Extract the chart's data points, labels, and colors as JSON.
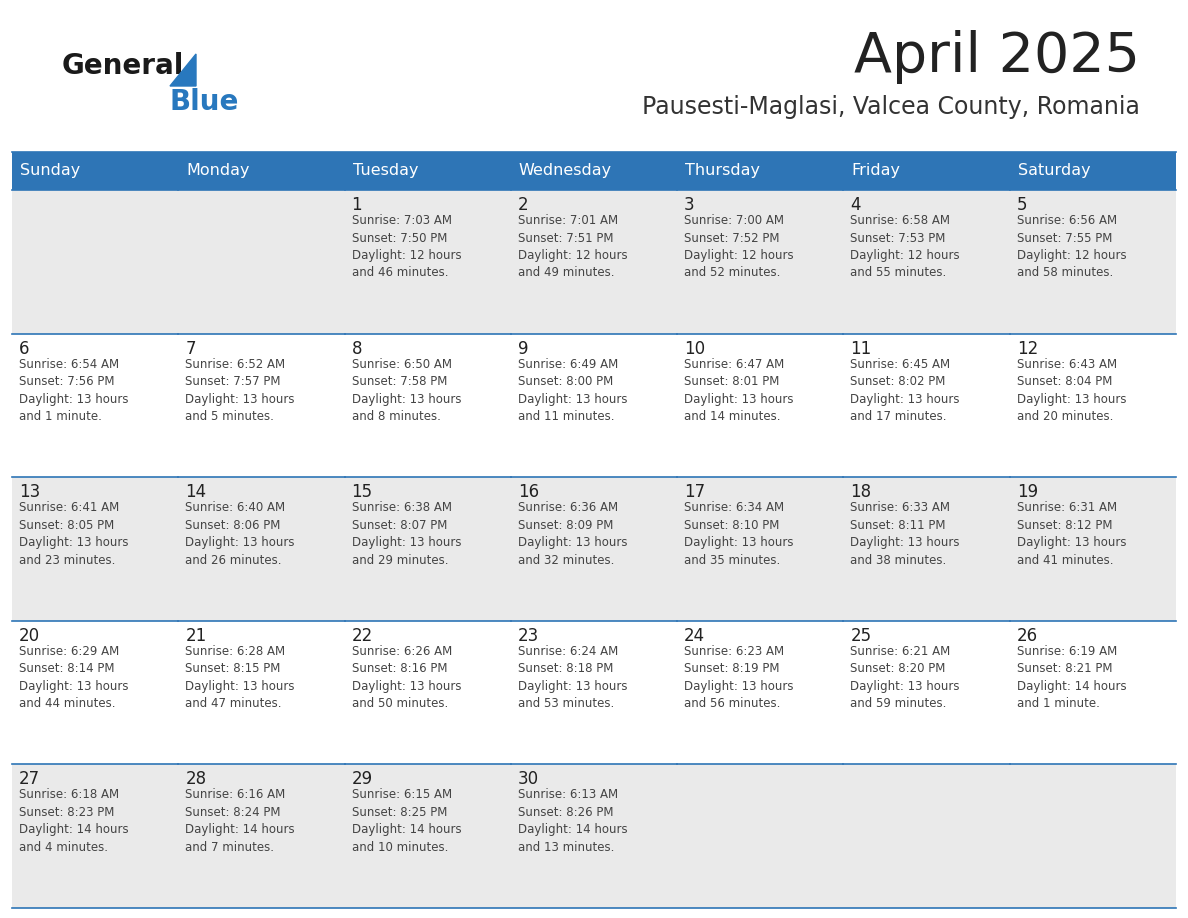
{
  "title": "April 2025",
  "subtitle": "Pausesti-Maglasi, Valcea County, Romania",
  "days_of_week": [
    "Sunday",
    "Monday",
    "Tuesday",
    "Wednesday",
    "Thursday",
    "Friday",
    "Saturday"
  ],
  "header_bg": "#2E75B6",
  "header_text_color": "#FFFFFF",
  "cell_bg_even": "#EAEAEA",
  "cell_bg_odd": "#FFFFFF",
  "line_color": "#2E75B6",
  "day_number_color": "#222222",
  "cell_text_color": "#444444",
  "title_color": "#222222",
  "subtitle_color": "#333333",
  "logo_general_color": "#1a1a1a",
  "logo_blue_color": "#2878BE",
  "calendar_data": [
    [
      {
        "day": null,
        "text": ""
      },
      {
        "day": null,
        "text": ""
      },
      {
        "day": 1,
        "text": "Sunrise: 7:03 AM\nSunset: 7:50 PM\nDaylight: 12 hours\nand 46 minutes."
      },
      {
        "day": 2,
        "text": "Sunrise: 7:01 AM\nSunset: 7:51 PM\nDaylight: 12 hours\nand 49 minutes."
      },
      {
        "day": 3,
        "text": "Sunrise: 7:00 AM\nSunset: 7:52 PM\nDaylight: 12 hours\nand 52 minutes."
      },
      {
        "day": 4,
        "text": "Sunrise: 6:58 AM\nSunset: 7:53 PM\nDaylight: 12 hours\nand 55 minutes."
      },
      {
        "day": 5,
        "text": "Sunrise: 6:56 AM\nSunset: 7:55 PM\nDaylight: 12 hours\nand 58 minutes."
      }
    ],
    [
      {
        "day": 6,
        "text": "Sunrise: 6:54 AM\nSunset: 7:56 PM\nDaylight: 13 hours\nand 1 minute."
      },
      {
        "day": 7,
        "text": "Sunrise: 6:52 AM\nSunset: 7:57 PM\nDaylight: 13 hours\nand 5 minutes."
      },
      {
        "day": 8,
        "text": "Sunrise: 6:50 AM\nSunset: 7:58 PM\nDaylight: 13 hours\nand 8 minutes."
      },
      {
        "day": 9,
        "text": "Sunrise: 6:49 AM\nSunset: 8:00 PM\nDaylight: 13 hours\nand 11 minutes."
      },
      {
        "day": 10,
        "text": "Sunrise: 6:47 AM\nSunset: 8:01 PM\nDaylight: 13 hours\nand 14 minutes."
      },
      {
        "day": 11,
        "text": "Sunrise: 6:45 AM\nSunset: 8:02 PM\nDaylight: 13 hours\nand 17 minutes."
      },
      {
        "day": 12,
        "text": "Sunrise: 6:43 AM\nSunset: 8:04 PM\nDaylight: 13 hours\nand 20 minutes."
      }
    ],
    [
      {
        "day": 13,
        "text": "Sunrise: 6:41 AM\nSunset: 8:05 PM\nDaylight: 13 hours\nand 23 minutes."
      },
      {
        "day": 14,
        "text": "Sunrise: 6:40 AM\nSunset: 8:06 PM\nDaylight: 13 hours\nand 26 minutes."
      },
      {
        "day": 15,
        "text": "Sunrise: 6:38 AM\nSunset: 8:07 PM\nDaylight: 13 hours\nand 29 minutes."
      },
      {
        "day": 16,
        "text": "Sunrise: 6:36 AM\nSunset: 8:09 PM\nDaylight: 13 hours\nand 32 minutes."
      },
      {
        "day": 17,
        "text": "Sunrise: 6:34 AM\nSunset: 8:10 PM\nDaylight: 13 hours\nand 35 minutes."
      },
      {
        "day": 18,
        "text": "Sunrise: 6:33 AM\nSunset: 8:11 PM\nDaylight: 13 hours\nand 38 minutes."
      },
      {
        "day": 19,
        "text": "Sunrise: 6:31 AM\nSunset: 8:12 PM\nDaylight: 13 hours\nand 41 minutes."
      }
    ],
    [
      {
        "day": 20,
        "text": "Sunrise: 6:29 AM\nSunset: 8:14 PM\nDaylight: 13 hours\nand 44 minutes."
      },
      {
        "day": 21,
        "text": "Sunrise: 6:28 AM\nSunset: 8:15 PM\nDaylight: 13 hours\nand 47 minutes."
      },
      {
        "day": 22,
        "text": "Sunrise: 6:26 AM\nSunset: 8:16 PM\nDaylight: 13 hours\nand 50 minutes."
      },
      {
        "day": 23,
        "text": "Sunrise: 6:24 AM\nSunset: 8:18 PM\nDaylight: 13 hours\nand 53 minutes."
      },
      {
        "day": 24,
        "text": "Sunrise: 6:23 AM\nSunset: 8:19 PM\nDaylight: 13 hours\nand 56 minutes."
      },
      {
        "day": 25,
        "text": "Sunrise: 6:21 AM\nSunset: 8:20 PM\nDaylight: 13 hours\nand 59 minutes."
      },
      {
        "day": 26,
        "text": "Sunrise: 6:19 AM\nSunset: 8:21 PM\nDaylight: 14 hours\nand 1 minute."
      }
    ],
    [
      {
        "day": 27,
        "text": "Sunrise: 6:18 AM\nSunset: 8:23 PM\nDaylight: 14 hours\nand 4 minutes."
      },
      {
        "day": 28,
        "text": "Sunrise: 6:16 AM\nSunset: 8:24 PM\nDaylight: 14 hours\nand 7 minutes."
      },
      {
        "day": 29,
        "text": "Sunrise: 6:15 AM\nSunset: 8:25 PM\nDaylight: 14 hours\nand 10 minutes."
      },
      {
        "day": 30,
        "text": "Sunrise: 6:13 AM\nSunset: 8:26 PM\nDaylight: 14 hours\nand 13 minutes."
      },
      {
        "day": null,
        "text": ""
      },
      {
        "day": null,
        "text": ""
      },
      {
        "day": null,
        "text": ""
      }
    ]
  ]
}
